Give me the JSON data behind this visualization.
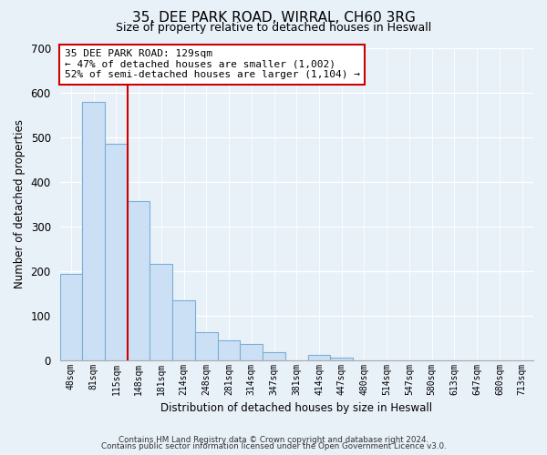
{
  "title": "35, DEE PARK ROAD, WIRRAL, CH60 3RG",
  "subtitle": "Size of property relative to detached houses in Heswall",
  "xlabel": "Distribution of detached houses by size in Heswall",
  "ylabel": "Number of detached properties",
  "bar_labels": [
    "48sqm",
    "81sqm",
    "115sqm",
    "148sqm",
    "181sqm",
    "214sqm",
    "248sqm",
    "281sqm",
    "314sqm",
    "347sqm",
    "381sqm",
    "414sqm",
    "447sqm",
    "480sqm",
    "514sqm",
    "547sqm",
    "580sqm",
    "613sqm",
    "647sqm",
    "680sqm",
    "713sqm"
  ],
  "bar_values": [
    193,
    578,
    485,
    356,
    215,
    133,
    63,
    44,
    35,
    17,
    0,
    11,
    5,
    0,
    0,
    0,
    0,
    0,
    0,
    0,
    0
  ],
  "bar_color": "#cce0f5",
  "bar_edge_color": "#7aafd4",
  "vline_color": "#cc0000",
  "annotation_title": "35 DEE PARK ROAD: 129sqm",
  "annotation_line1": "← 47% of detached houses are smaller (1,002)",
  "annotation_line2": "52% of semi-detached houses are larger (1,104) →",
  "annotation_box_facecolor": "#ffffff",
  "annotation_box_edgecolor": "#cc0000",
  "ylim": [
    0,
    700
  ],
  "yticks": [
    0,
    100,
    200,
    300,
    400,
    500,
    600,
    700
  ],
  "footnote1": "Contains HM Land Registry data © Crown copyright and database right 2024.",
  "footnote2": "Contains public sector information licensed under the Open Government Licence v3.0.",
  "bg_color": "#e8f0f8"
}
